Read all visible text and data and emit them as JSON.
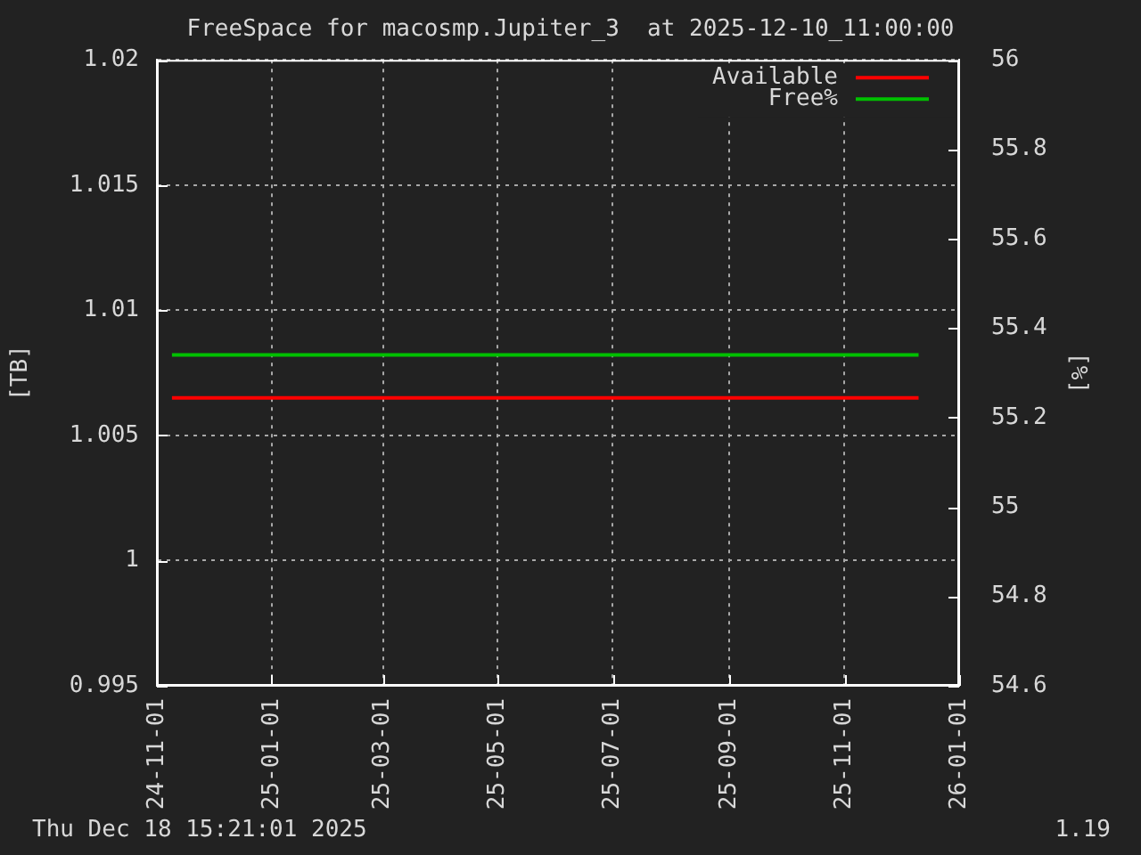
{
  "chart_data": {
    "type": "line",
    "title": "FreeSpace for macosmp.Jupiter_3  at 2025-12-10_11:00:00",
    "ylabel": "[TB]",
    "y2label": "[%]",
    "x": [
      "2024-11-09",
      "2025-12-10T11:00"
    ],
    "series": [
      {
        "name": "Available",
        "color": "#ff0000",
        "values": [
          1.0065,
          1.0065
        ]
      },
      {
        "name": "Free%",
        "color": "#00c000",
        "values": [
          55.34,
          55.34
        ],
        "axis": "y2"
      }
    ],
    "xlim": [
      "2024-11-01",
      "2026-01-01"
    ],
    "xticks": [
      {
        "value": "2024-11-01",
        "label": "24-11-01"
      },
      {
        "value": "2025-01-01",
        "label": "25-01-01"
      },
      {
        "value": "2025-03-01",
        "label": "25-03-01"
      },
      {
        "value": "2025-05-01",
        "label": "25-05-01"
      },
      {
        "value": "2025-07-01",
        "label": "25-07-01"
      },
      {
        "value": "2025-09-01",
        "label": "25-09-01"
      },
      {
        "value": "2025-11-01",
        "label": "25-11-01"
      },
      {
        "value": "2026-01-01",
        "label": "26-01-01"
      }
    ],
    "ylim": [
      0.995,
      1.02
    ],
    "yticks": [
      0.995,
      1,
      1.005,
      1.01,
      1.015,
      1.02
    ],
    "y2lim": [
      54.6,
      56
    ],
    "y2ticks": [
      54.6,
      54.8,
      55,
      55.2,
      55.4,
      55.6,
      55.8,
      56
    ],
    "grid": true,
    "legend": "top right",
    "annotations": [
      "Thu Dec 18 15:21:01 2025",
      "1.19"
    ]
  }
}
